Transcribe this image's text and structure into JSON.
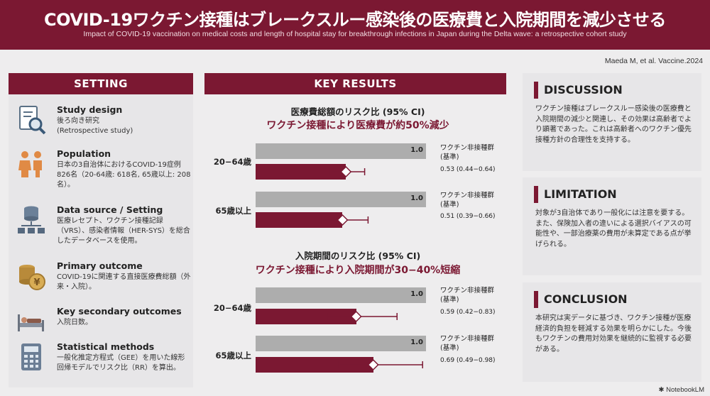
{
  "header": {
    "title": "COVID-19ワクチン接種はブレークスルー感染後の医療費と入院期間を減少させる",
    "subtitle": "Impact of COVID-19 vaccination on medical costs and length of hospital stay for breakthrough infections in Japan during the Delta wave: a retrospective cohort study",
    "citation": "Maeda M, et al. Vaccine.2024"
  },
  "setting": {
    "heading": "SETTING",
    "items": [
      {
        "icon": "document-search-icon",
        "title": "Study design",
        "body": "後ろ向き研究\n(Retrospective study)"
      },
      {
        "icon": "people-icon",
        "title": "Population",
        "body": "日本の3自治体におけるCOVID-19症例826名（20-64歳: 618名, 65歳以上: 208名）。"
      },
      {
        "icon": "database-network-icon",
        "title": "Data source / Setting",
        "body": "医療レセプト、ワクチン接種記録（VRS）、感染者情報（HER-SYS）を総合したデータベースを使用。"
      },
      {
        "icon": "coins-yen-icon",
        "title": "Primary outcome",
        "body": "COVID-19に関連する直接医療費総額（外来・入院）。"
      },
      {
        "icon": "hospital-bed-icon",
        "title": "Key secondary outcomes",
        "body": "入院日数。"
      },
      {
        "icon": "calculator-icon",
        "title": "Statistical methods",
        "body": "一般化推定方程式（GEE）を用いた線形回帰モデルでリスク比（RR）を算出。"
      }
    ]
  },
  "results": {
    "heading": "KEY RESULTS",
    "ref_label_line1": "ワクチン非接種群",
    "ref_label_line2": "(基準)",
    "colors": {
      "vaccinated": "#7b1832",
      "reference": "#adadad"
    }
  },
  "chart_data": [
    {
      "type": "bar",
      "title": "医療費総額のリスク比 (95% CI)",
      "subtitle": "ワクチン接種により医療費が約50%減少",
      "categories": [
        "20−64歳",
        "65歳以上"
      ],
      "series": [
        {
          "name": "ワクチン非接種群 (基準)",
          "values": [
            1.0,
            1.0
          ],
          "labels": [
            "1.0",
            "1.0"
          ]
        },
        {
          "values": [
            0.53,
            0.51
          ],
          "ci_low": [
            0.44,
            0.39
          ],
          "ci_high": [
            0.64,
            0.66
          ],
          "labels": [
            "0.53 (0.44−0.64)",
            "0.51 (0.39−0.66)"
          ]
        }
      ],
      "xlim": [
        0,
        1.0
      ]
    },
    {
      "type": "bar",
      "title": "入院期間のリスク比 (95% CI)",
      "subtitle": "ワクチン接種により入院期間が30−40%短縮",
      "categories": [
        "20−64歳",
        "65歳以上"
      ],
      "series": [
        {
          "name": "ワクチン非接種群 (基準)",
          "values": [
            1.0,
            1.0
          ],
          "labels": [
            "1.0",
            "1.0"
          ]
        },
        {
          "values": [
            0.59,
            0.69
          ],
          "ci_low": [
            0.42,
            0.49
          ],
          "ci_high": [
            0.83,
            0.98
          ],
          "labels": [
            "0.59 (0.42−0.83)",
            "0.69 (0.49−0.98)"
          ]
        }
      ],
      "xlim": [
        0,
        1.0
      ]
    }
  ],
  "discussion": {
    "heading": "DISCUSSION",
    "body": "ワクチン接種はブレークスルー感染後の医療費と入院期間の減少と関連し、その効果は高齢者でより顕著であった。これは高齢者へのワクチン優先接種方針の合理性を支持する。"
  },
  "limitation": {
    "heading": "LIMITATION",
    "body": "対象が3自治体であり一般化には注意を要する。また、保険加入者の違いによる選択バイアスの可能性や、一部治療薬の費用が未算定である点が挙げられる。"
  },
  "conclusion": {
    "heading": "CONCLUSION",
    "body": "本研究は実データに基づき、ワクチン接種が医療経済的負担を軽減する効果を明らかにした。今後もワクチンの費用対効果を継続的に監視する必要がある。"
  },
  "footer": {
    "brand": "NotebookLM"
  }
}
